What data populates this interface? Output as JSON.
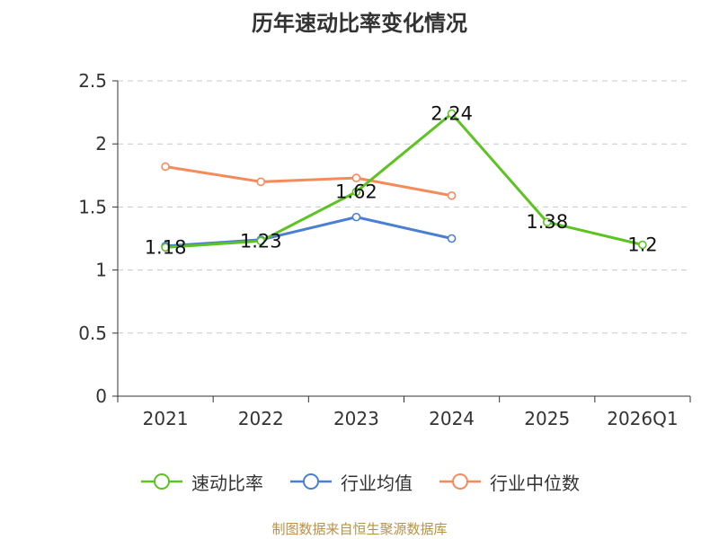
{
  "chart_data": {
    "type": "line",
    "title": "历年速动比率变化情况",
    "categories": [
      "2021",
      "2022",
      "2023",
      "2024",
      "2025",
      "2026Q1"
    ],
    "y_ticks": [
      "0",
      "0.5",
      "1",
      "1.5",
      "2",
      "2.5"
    ],
    "ylim": [
      0,
      2.5
    ],
    "grid": true,
    "legend_position": "bottom",
    "series": [
      {
        "name": "速动比率",
        "color": "#5cc321",
        "values": [
          1.18,
          1.23,
          1.62,
          2.24,
          1.38,
          1.2
        ],
        "labels": [
          "1.18",
          "1.23",
          "1.62",
          "2.24",
          "1.38",
          "1.2"
        ]
      },
      {
        "name": "行业均值",
        "color": "#4a7fd4",
        "values": [
          1.19,
          1.24,
          1.42,
          1.25,
          null,
          null
        ]
      },
      {
        "name": "行业中位数",
        "color": "#f58b5a",
        "values": [
          1.82,
          1.7,
          1.73,
          1.59,
          null,
          null
        ]
      }
    ]
  },
  "footer": {
    "source": "制图数据来自恒生聚源数据库"
  }
}
